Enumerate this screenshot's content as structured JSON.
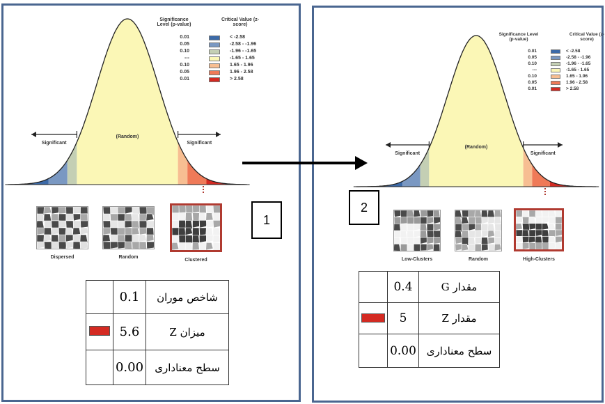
{
  "legend": {
    "header_p": "Significance Level (p-value)",
    "header_z": "Critical Value (z-score)",
    "rows": [
      {
        "p": "0.01",
        "z": "< -2.58",
        "color": "#3c6aa8"
      },
      {
        "p": "0.05",
        "z": "-2.58 - -1.96",
        "color": "#7a98c2"
      },
      {
        "p": "0.10",
        "z": "-1.96 - -1.65",
        "color": "#c4cfb4"
      },
      {
        "p": "---",
        "z": "-1.65 - 1.65",
        "color": "#fbf7b6"
      },
      {
        "p": "0.10",
        "z": "1.65 - 1.96",
        "color": "#f7be92"
      },
      {
        "p": "0.05",
        "z": "1.96 - 2.58",
        "color": "#ef7a58"
      },
      {
        "p": "0.01",
        "z": "> 2.58",
        "color": "#d42a22"
      }
    ]
  },
  "curve": {
    "random_label": "(Random)",
    "significant_label": "Significant"
  },
  "panel1": {
    "box_number": "1",
    "maps": [
      {
        "label": "Dispersed"
      },
      {
        "label": "Random"
      },
      {
        "label": "Clustered"
      }
    ],
    "table": [
      {
        "label": "شاخص موران",
        "value": "0.1"
      },
      {
        "label": "میزان Z",
        "value": "5.6"
      },
      {
        "label": "سطح معناداری",
        "value": "0.00"
      }
    ]
  },
  "panel2": {
    "box_number": "2",
    "maps": [
      {
        "label": "Low-Clusters"
      },
      {
        "label": "Random"
      },
      {
        "label": "High-Clusters"
      }
    ],
    "table": [
      {
        "label": "مقدار G",
        "value": "0.4"
      },
      {
        "label": "مقدار Z",
        "value": "5"
      },
      {
        "label": "سطح معناداری",
        "value": "0.00"
      }
    ]
  },
  "colors": {
    "panel_border": "#4a6690",
    "curve_fill": "#fbf7b6",
    "highlight_border": "#b03a30",
    "indicator": "#d42a22"
  }
}
